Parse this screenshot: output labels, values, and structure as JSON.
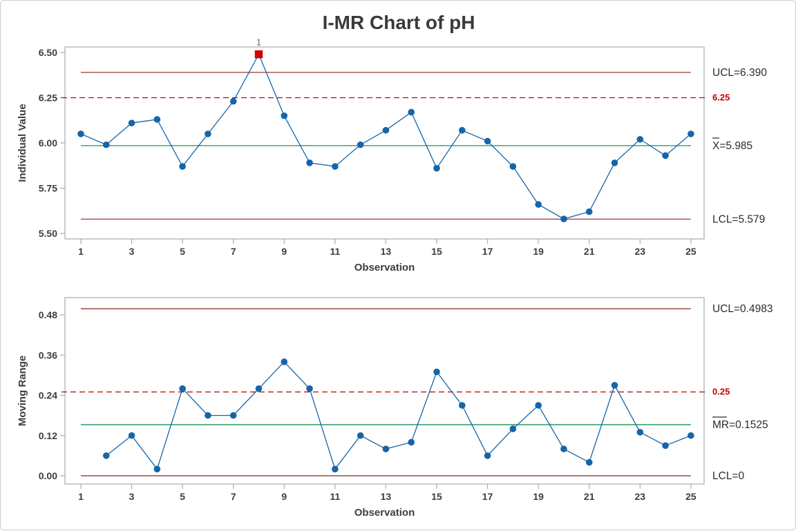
{
  "title": "I-MR Chart of pH",
  "colors": {
    "series": "#1565A8",
    "center_line": "#00843D",
    "control_limit": "#8B2222",
    "spec_line": "#C00000",
    "out_of_control": "#D40000",
    "frame": "#ABABAB",
    "text": "#2B2B2B",
    "tick_text": "#3D3D3D"
  },
  "chart_data": [
    {
      "type": "line",
      "name": "individual-value-chart",
      "xlabel": "Observation",
      "ylabel": "Individual Value",
      "x": [
        1,
        2,
        3,
        4,
        5,
        6,
        7,
        8,
        9,
        10,
        11,
        12,
        13,
        14,
        15,
        16,
        17,
        18,
        19,
        20,
        21,
        22,
        23,
        24,
        25
      ],
      "values": [
        6.05,
        5.99,
        6.11,
        6.13,
        5.87,
        6.05,
        6.23,
        6.49,
        6.15,
        5.89,
        5.87,
        5.99,
        6.07,
        6.17,
        5.86,
        6.07,
        6.01,
        5.87,
        5.66,
        5.58,
        5.62,
        5.89,
        6.02,
        5.93,
        6.05
      ],
      "xticks": {
        "values": [
          1,
          3,
          5,
          7,
          9,
          11,
          13,
          15,
          17,
          19,
          21,
          23,
          25
        ],
        "labels": [
          "1",
          "3",
          "5",
          "7",
          "9",
          "11",
          "13",
          "15",
          "17",
          "19",
          "21",
          "23",
          "25"
        ]
      },
      "yticks": {
        "values": [
          5.5,
          5.75,
          6.0,
          6.25,
          6.5
        ],
        "labels": [
          "5.50",
          "5.75",
          "6.00",
          "6.25",
          "6.50"
        ]
      },
      "xlim": [
        0.375,
        25.52
      ],
      "ylim": [
        5.4695,
        6.5305
      ],
      "grid": false,
      "line_span": [
        1,
        25
      ],
      "lines": [
        {
          "type": "limit",
          "value": 6.39
        },
        {
          "type": "spec",
          "value": 6.25
        },
        {
          "type": "center",
          "value": 5.985
        },
        {
          "type": "limit",
          "value": 5.579
        }
      ],
      "annotations": [
        {
          "label": "UCL=6.390",
          "value": 6.39,
          "style": "normal"
        },
        {
          "label": "6.25",
          "value": 6.25,
          "style": "spec"
        },
        {
          "label": "X=5.985",
          "value": 5.985,
          "style": "normal",
          "bar_chars": 1
        },
        {
          "label": "LCL=5.579",
          "value": 5.579,
          "style": "normal"
        }
      ],
      "out_of_control": [
        {
          "x": 8,
          "label": "1"
        }
      ]
    },
    {
      "type": "line",
      "name": "moving-range-chart",
      "xlabel": "Observation",
      "ylabel": "Moving Range",
      "x": [
        2,
        3,
        4,
        5,
        6,
        7,
        8,
        9,
        10,
        11,
        12,
        13,
        14,
        15,
        16,
        17,
        18,
        19,
        20,
        21,
        22,
        23,
        24,
        25
      ],
      "values": [
        0.06,
        0.12,
        0.02,
        0.26,
        0.18,
        0.18,
        0.26,
        0.34,
        0.26,
        0.02,
        0.12,
        0.08,
        0.1,
        0.31,
        0.21,
        0.06,
        0.14,
        0.21,
        0.08,
        0.04,
        0.27,
        0.13,
        0.09,
        0.12
      ],
      "xticks": {
        "values": [
          1,
          3,
          5,
          7,
          9,
          11,
          13,
          15,
          17,
          19,
          21,
          23,
          25
        ],
        "labels": [
          "1",
          "3",
          "5",
          "7",
          "9",
          "11",
          "13",
          "15",
          "17",
          "19",
          "21",
          "23",
          "25"
        ]
      },
      "yticks": {
        "values": [
          0.0,
          0.12,
          0.24,
          0.36,
          0.48
        ],
        "labels": [
          "0.00",
          "0.12",
          "0.24",
          "0.36",
          "0.48"
        ]
      },
      "xlim": [
        0.375,
        25.52
      ],
      "ylim": [
        -0.0247,
        0.5315
      ],
      "grid": false,
      "line_span": [
        1,
        25
      ],
      "lines": [
        {
          "type": "limit",
          "value": 0.4983
        },
        {
          "type": "spec",
          "value": 0.25
        },
        {
          "type": "center",
          "value": 0.1525
        },
        {
          "type": "limit",
          "value": 0
        }
      ],
      "annotations": [
        {
          "label": "UCL=0.4983",
          "value": 0.4983,
          "style": "normal"
        },
        {
          "label": "0.25",
          "value": 0.25,
          "style": "spec"
        },
        {
          "label": "MR=0.1525",
          "value": 0.1525,
          "style": "normal",
          "bar_chars": 2
        },
        {
          "label": "LCL=0",
          "value": 0,
          "style": "normal"
        }
      ],
      "out_of_control": []
    }
  ]
}
